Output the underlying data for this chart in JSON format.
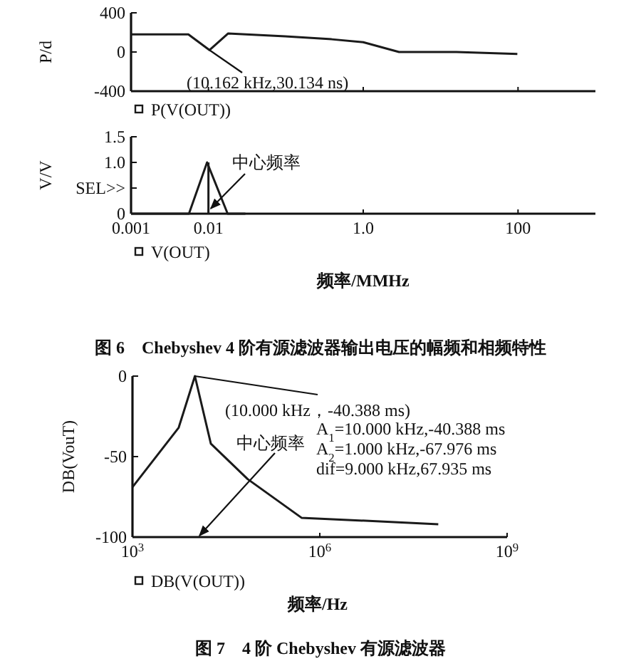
{
  "chart_data": [
    {
      "type": "line",
      "ylabel": "P/d",
      "log": "x",
      "xlim": [
        0.001,
        1000
      ],
      "ylim": [
        -400,
        400
      ],
      "xticks": [
        0.001,
        0.01,
        1,
        100
      ],
      "yticks": [
        -400,
        0,
        400
      ],
      "tick_labels": "y",
      "legend": "bottom left",
      "series": [
        {
          "name": "P(V(OUT))",
          "color": "#1a1a1a",
          "x": [
            0.001,
            0.0055,
            0.0103,
            0.018,
            0.098,
            0.39,
            1,
            2.9,
            16,
            98
          ],
          "values": [
            180,
            180,
            20,
            190,
            160,
            130,
            100,
            0,
            0,
            -20
          ]
        }
      ],
      "annotations": [
        {
          "text": "(10.162 kHz,30.134 ns)",
          "x": 0.0103,
          "y": 20
        }
      ]
    },
    {
      "type": "line",
      "ylabel": "V/V",
      "xlabel": "频率/MMHz",
      "log": "x",
      "xlim": [
        0.001,
        1000
      ],
      "ylim": [
        0,
        1.5
      ],
      "xticks": [
        0.001,
        0.01,
        {
          "value": 1,
          "label": "1.0"
        },
        100
      ],
      "yticks": [
        0,
        {
          "value": 0.5,
          "label": "SEL>>"
        },
        {
          "value": 1,
          "label": "1.0"
        },
        1.5
      ],
      "legend": "bottom left",
      "series": [
        {
          "name": "V(OUT)",
          "color": "#1a1a1a",
          "x": [
            0.001,
            0.0056,
            0.0096,
            0.0177,
            0.03
          ],
          "values": [
            0,
            0,
            1,
            0,
            0
          ]
        },
        {
          "color": "#1a1a1a",
          "x": [
            0.01,
            0.01
          ],
          "values": [
            0,
            1
          ]
        }
      ],
      "annotations": [
        {
          "text": "中心频率",
          "x": 0.0107,
          "y": 0.1
        },
        "图 6　Chebyshev 4 阶有源滤波器输出电压的幅频和相频特性"
      ]
    },
    {
      "type": "line",
      "ylabel": "DB(VouT)",
      "xlabel": "频率/Hz",
      "log": "x",
      "xlim": [
        1000,
        1000000000
      ],
      "ylim": [
        -100,
        0
      ],
      "xticks": [
        {
          "value": 1000,
          "label": "10$^{3}$"
        },
        {
          "value": 1000000,
          "label": "10$^{6}$"
        },
        {
          "value": 1000000000,
          "label": "10$^{9}$"
        }
      ],
      "yticks": [
        -100,
        -50,
        0
      ],
      "legend": "bottom left",
      "series": [
        {
          "name": "DB(V(OUT))",
          "color": "#1a1a1a",
          "x": [
            1000,
            5500,
            10000,
            18000,
            70000,
            510000,
            79000000
          ],
          "values": [
            -69,
            -32,
            0,
            -42,
            -64,
            -88,
            -92
          ]
        }
      ],
      "annotations": [
        {
          "text": "(10.000 kHz，-40.388 ms)",
          "x": 10000,
          "y": 0
        },
        "中心频率",
        "A$_{1}$=10.000 kHz,-40.388 ms",
        "A$_{2}$=1.000 kHz,-67.976 ms",
        "dif=9.000 kHz,67.935 ms",
        "图 7　4 阶 Chebyshev 有源滤波器"
      ]
    }
  ]
}
